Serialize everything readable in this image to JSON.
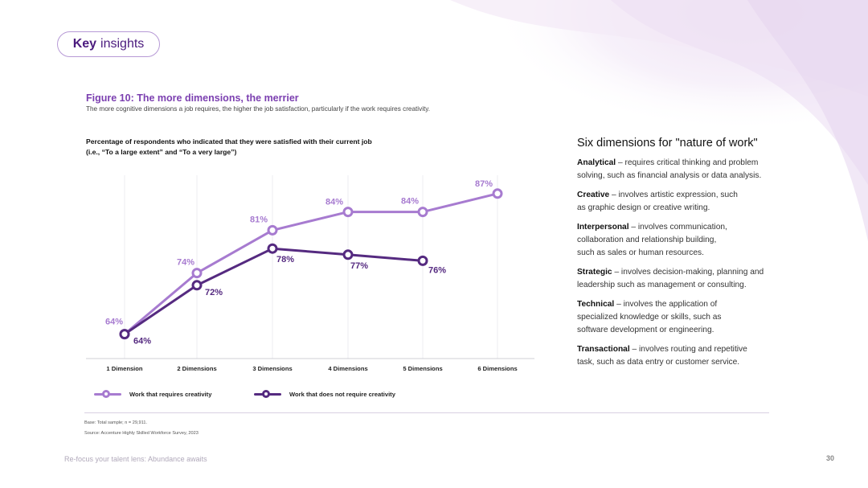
{
  "badge": {
    "bold": "Key",
    "rest": "insights"
  },
  "figure": {
    "title": "Figure 10: The more dimensions, the merrier",
    "subtitle": "The more cognitive dimensions a job requires, the higher the job satisfaction, particularly if the work requires creativity."
  },
  "chart_heading": {
    "line1": "Percentage of respondents who indicated that they were satisfied with their current job",
    "line2": "(i.e., “To a large extent” and “To a very large”)"
  },
  "chart_data": {
    "type": "line",
    "categories": [
      "1 Dimension",
      "2 Dimensions",
      "3 Dimensions",
      "4 Dimensions",
      "5 Dimensions",
      "6 Dimensions"
    ],
    "ylim": [
      60,
      90
    ],
    "grid": "vertical",
    "legend": "bottom",
    "series": [
      {
        "name": "Work that requires creativity",
        "values": [
          64,
          74,
          81,
          84,
          84,
          87
        ],
        "labels": [
          "64%",
          "74%",
          "81%",
          "84%",
          "84%",
          "87%"
        ],
        "color": "#a77bd0"
      },
      {
        "name": "Work that does not require creativity",
        "values": [
          64,
          72,
          78,
          77,
          76,
          null
        ],
        "labels": [
          "64%",
          "72%",
          "78%",
          "77%",
          "76%",
          ""
        ],
        "color": "#552a80"
      }
    ]
  },
  "notes": {
    "base": "Base: Total sample; n = 29,911.",
    "source": "Source: Accenture Highly Skilled Workforce Survey, 2023"
  },
  "dimensions": {
    "title": "Six dimensions for \"nature of work\"",
    "items": [
      {
        "name": "Analytical",
        "lines": [
          "– requires critical thinking and problem",
          "solving, such as financial analysis or data analysis."
        ]
      },
      {
        "name": "Creative",
        "lines": [
          "– involves artistic expression, such",
          "as graphic design or creative writing."
        ]
      },
      {
        "name": "Interpersonal",
        "lines": [
          "– involves communication,",
          "collaboration and relationship building,",
          "such as sales or human resources."
        ]
      },
      {
        "name": "Strategic",
        "lines": [
          "– involves decision-making, planning and",
          "leadership such as management or consulting."
        ]
      },
      {
        "name": "Technical",
        "lines": [
          "– involves the application of",
          "specialized knowledge or skills, such as",
          "software development or engineering."
        ]
      },
      {
        "name": "Transactional",
        "lines": [
          "– involves routing and repetitive",
          "task, such as data entry or customer service."
        ]
      }
    ]
  },
  "footer": {
    "left": "Re-focus your talent lens: Abundance awaits",
    "page": "30"
  }
}
